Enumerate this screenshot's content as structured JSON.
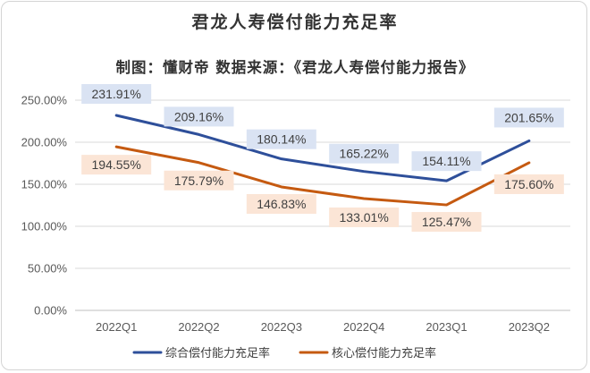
{
  "chart_data": {
    "type": "line",
    "title": "君龙人寿偿付能力充足率",
    "subtitle": "制图：懂财帝  数据来源：《君龙人寿偿付能力报告》",
    "categories": [
      "2022Q1",
      "2022Q2",
      "2022Q3",
      "2022Q4",
      "2023Q1",
      "2023Q2"
    ],
    "ylim": [
      0,
      250
    ],
    "yticks": [
      "0.00%",
      "50.00%",
      "100.00%",
      "150.00%",
      "200.00%",
      "250.00%"
    ],
    "series": [
      {
        "name": "综合偿付能力充足率",
        "values": [
          231.91,
          209.16,
          180.14,
          165.22,
          154.11,
          201.65
        ],
        "labels": [
          "231.91%",
          "209.16%",
          "180.14%",
          "165.22%",
          "154.11%",
          "201.65%"
        ],
        "color": "#2e4f9a",
        "label_bg": "#dae3f3"
      },
      {
        "name": "核心偿付能力充足率",
        "values": [
          194.55,
          175.79,
          146.83,
          133.01,
          125.47,
          175.6
        ],
        "labels": [
          "194.55%",
          "175.79%",
          "146.83%",
          "133.01%",
          "125.47%",
          "175.60%"
        ],
        "color": "#c55a11",
        "label_bg": "#fbe5d6"
      }
    ],
    "legend": "bottom-center",
    "grid": true
  }
}
